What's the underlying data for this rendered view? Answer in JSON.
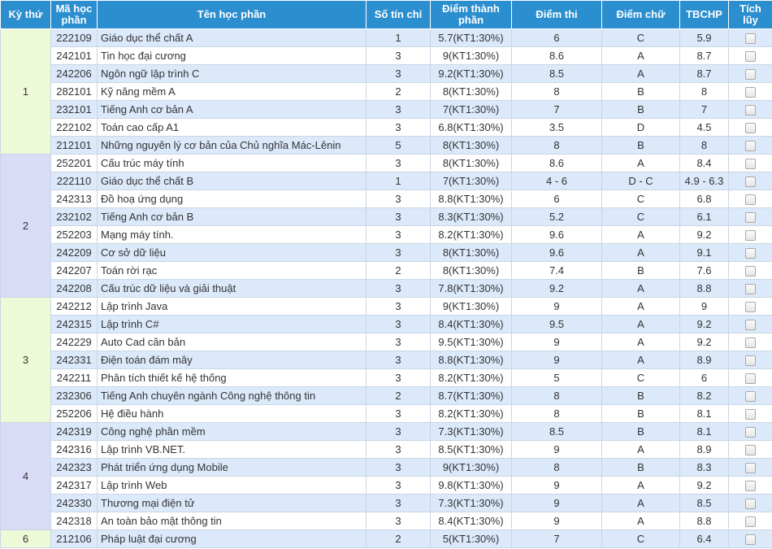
{
  "headers": [
    "Kỳ thứ",
    "Mã học phần",
    "Tên học phần",
    "Số tín chỉ",
    "Điểm thành phần",
    "Điểm thi",
    "Điểm chữ",
    "TBCHP",
    "Tích lũy"
  ],
  "semesters": [
    {
      "label": "1",
      "theme": "green",
      "rows": [
        {
          "code": "222109",
          "name": "Giáo dục thể chất A",
          "credits": "1",
          "component": "5.7(KT1:30%)",
          "exam": "6",
          "letter": "C",
          "avg": "5.9"
        },
        {
          "code": "242101",
          "name": "Tin học đại cương",
          "credits": "3",
          "component": "9(KT1:30%)",
          "exam": "8.6",
          "letter": "A",
          "avg": "8.7"
        },
        {
          "code": "242206",
          "name": "Ngôn ngữ lập trình C",
          "credits": "3",
          "component": "9.2(KT1:30%)",
          "exam": "8.5",
          "letter": "A",
          "avg": "8.7"
        },
        {
          "code": "282101",
          "name": "Kỹ năng mềm A",
          "credits": "2",
          "component": "8(KT1:30%)",
          "exam": "8",
          "letter": "B",
          "avg": "8"
        },
        {
          "code": "232101",
          "name": "Tiếng Anh cơ bản A",
          "credits": "3",
          "component": "7(KT1:30%)",
          "exam": "7",
          "letter": "B",
          "avg": "7"
        },
        {
          "code": "222102",
          "name": "Toán cao cấp A1",
          "credits": "3",
          "component": "6.8(KT1:30%)",
          "exam": "3.5",
          "letter": "D",
          "avg": "4.5"
        },
        {
          "code": "212101",
          "name": "Những nguyên lý cơ bản của Chủ nghĩa Mác-Lênin",
          "credits": "5",
          "component": "8(KT1:30%)",
          "exam": "8",
          "letter": "B",
          "avg": "8"
        }
      ]
    },
    {
      "label": "2",
      "theme": "purple",
      "rows": [
        {
          "code": "252201",
          "name": "Cấu trúc máy tính",
          "credits": "3",
          "component": "8(KT1:30%)",
          "exam": "8.6",
          "letter": "A",
          "avg": "8.4"
        },
        {
          "code": "222110",
          "name": "Giáo dục thể chất B",
          "credits": "1",
          "component": "7(KT1:30%)",
          "exam": "4 - 6",
          "letter": "D - C",
          "avg": "4.9 - 6.3"
        },
        {
          "code": "242313",
          "name": "Đồ hoạ ứng dụng",
          "credits": "3",
          "component": "8.8(KT1:30%)",
          "exam": "6",
          "letter": "C",
          "avg": "6.8"
        },
        {
          "code": "232102",
          "name": "Tiếng Anh cơ bản B",
          "credits": "3",
          "component": "8.3(KT1:30%)",
          "exam": "5.2",
          "letter": "C",
          "avg": "6.1"
        },
        {
          "code": "252203",
          "name": "Mạng máy tính.",
          "credits": "3",
          "component": "8.2(KT1:30%)",
          "exam": "9.6",
          "letter": "A",
          "avg": "9.2"
        },
        {
          "code": "242209",
          "name": "Cơ sở dữ liệu",
          "credits": "3",
          "component": "8(KT1:30%)",
          "exam": "9.6",
          "letter": "A",
          "avg": "9.1"
        },
        {
          "code": "242207",
          "name": "Toán rời rạc",
          "credits": "2",
          "component": "8(KT1:30%)",
          "exam": "7.4",
          "letter": "B",
          "avg": "7.6"
        },
        {
          "code": "242208",
          "name": "Cấu trúc dữ liệu và giải thuật",
          "credits": "3",
          "component": "7.8(KT1:30%)",
          "exam": "9.2",
          "letter": "A",
          "avg": "8.8"
        }
      ]
    },
    {
      "label": "3",
      "theme": "green",
      "rows": [
        {
          "code": "242212",
          "name": "Lập trình Java",
          "credits": "3",
          "component": "9(KT1:30%)",
          "exam": "9",
          "letter": "A",
          "avg": "9"
        },
        {
          "code": "242315",
          "name": "Lập trình C#",
          "credits": "3",
          "component": "8.4(KT1:30%)",
          "exam": "9.5",
          "letter": "A",
          "avg": "9.2"
        },
        {
          "code": "242229",
          "name": "Auto Cad căn bản",
          "credits": "3",
          "component": "9.5(KT1:30%)",
          "exam": "9",
          "letter": "A",
          "avg": "9.2"
        },
        {
          "code": "242331",
          "name": "Điện toán đám mây",
          "credits": "3",
          "component": "8.8(KT1:30%)",
          "exam": "9",
          "letter": "A",
          "avg": "8.9"
        },
        {
          "code": "242211",
          "name": "Phân tích thiết kế hệ thống",
          "credits": "3",
          "component": "8.2(KT1:30%)",
          "exam": "5",
          "letter": "C",
          "avg": "6"
        },
        {
          "code": "232306",
          "name": "Tiếng Anh chuyên ngành Công nghệ thông tin",
          "credits": "2",
          "component": "8.7(KT1:30%)",
          "exam": "8",
          "letter": "B",
          "avg": "8.2"
        },
        {
          "code": "252206",
          "name": "Hệ điều hành",
          "credits": "3",
          "component": "8.2(KT1:30%)",
          "exam": "8",
          "letter": "B",
          "avg": "8.1"
        }
      ]
    },
    {
      "label": "4",
      "theme": "purple",
      "rows": [
        {
          "code": "242319",
          "name": "Công nghệ phần mềm",
          "credits": "3",
          "component": "7.3(KT1:30%)",
          "exam": "8.5",
          "letter": "B",
          "avg": "8.1"
        },
        {
          "code": "242316",
          "name": "Lập trình VB.NET.",
          "credits": "3",
          "component": "8.5(KT1:30%)",
          "exam": "9",
          "letter": "A",
          "avg": "8.9"
        },
        {
          "code": "242323",
          "name": "Phát triển ứng dụng Mobile",
          "credits": "3",
          "component": "9(KT1:30%)",
          "exam": "8",
          "letter": "B",
          "avg": "8.3"
        },
        {
          "code": "242317",
          "name": "Lập trình Web",
          "credits": "3",
          "component": "9.8(KT1:30%)",
          "exam": "9",
          "letter": "A",
          "avg": "9.2"
        },
        {
          "code": "242330",
          "name": "Thương mại điện tử",
          "credits": "3",
          "component": "7.3(KT1:30%)",
          "exam": "9",
          "letter": "A",
          "avg": "8.5"
        },
        {
          "code": "242318",
          "name": "An toàn bảo mật thông tin",
          "credits": "3",
          "component": "8.4(KT1:30%)",
          "exam": "9",
          "letter": "A",
          "avg": "8.8"
        }
      ]
    },
    {
      "label": "6",
      "theme": "green",
      "rows": [
        {
          "code": "212106",
          "name": "Pháp luật đại cương",
          "credits": "2",
          "component": "5(KT1:30%)",
          "exam": "7",
          "letter": "C",
          "avg": "6.4"
        }
      ]
    }
  ]
}
